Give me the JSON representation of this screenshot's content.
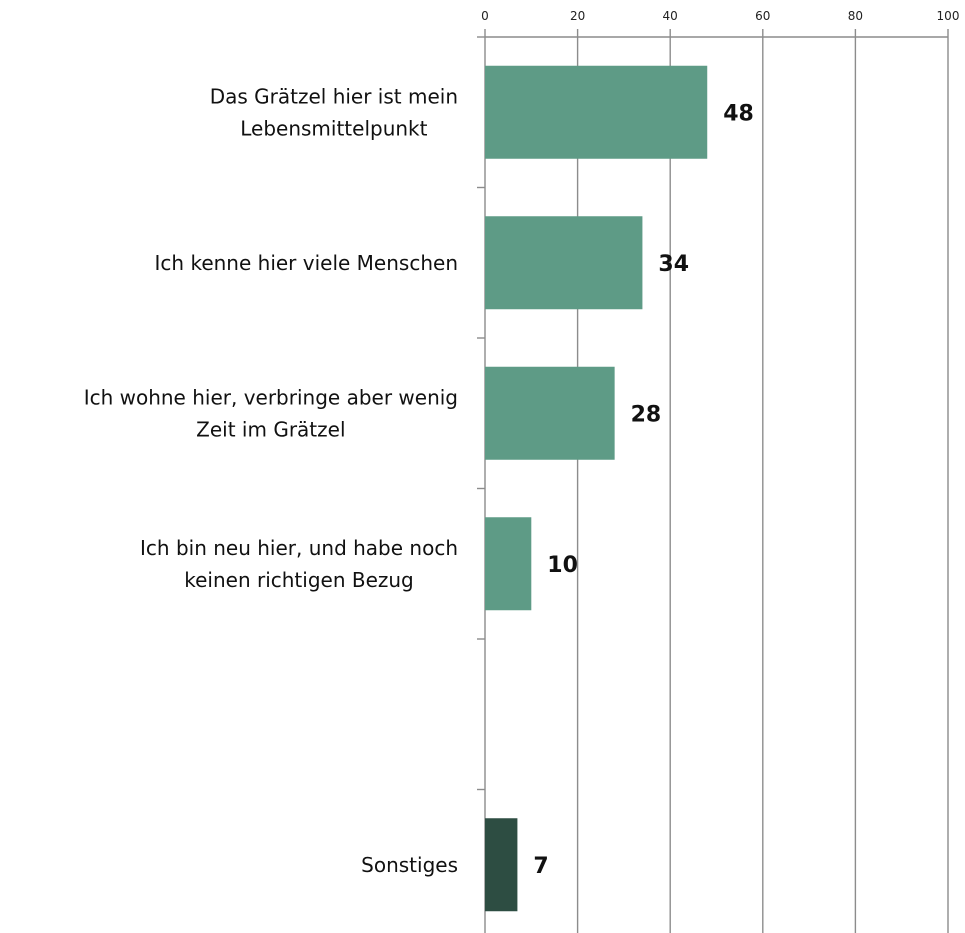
{
  "chart_data": {
    "type": "bar",
    "orientation": "horizontal",
    "categories": [
      [
        "Das Grätzel hier ist mein",
        "Lebensmittelpunkt"
      ],
      [
        "Ich kenne hier viele Menschen"
      ],
      [
        "Ich wohne hier, verbringe aber wenig",
        "Zeit im Grätzel"
      ],
      [
        "Ich bin neu hier, und habe noch",
        "keinen richtigen Bezug"
      ],
      [],
      [
        "Sonstiges"
      ]
    ],
    "values": [
      48,
      34,
      28,
      10,
      null,
      7
    ],
    "value_labels": [
      "48",
      "34",
      "28",
      "10",
      "",
      "7"
    ],
    "bar_colors": [
      "#5e9b86",
      "#5e9b86",
      "#5e9b86",
      "#5e9b86",
      "#5e9b86",
      "#2d4d42"
    ],
    "xlim": [
      0,
      100
    ],
    "xticks": [
      0,
      20,
      40,
      60,
      80,
      100
    ],
    "x_axis_position": "top",
    "grid": true,
    "legend": "none"
  }
}
